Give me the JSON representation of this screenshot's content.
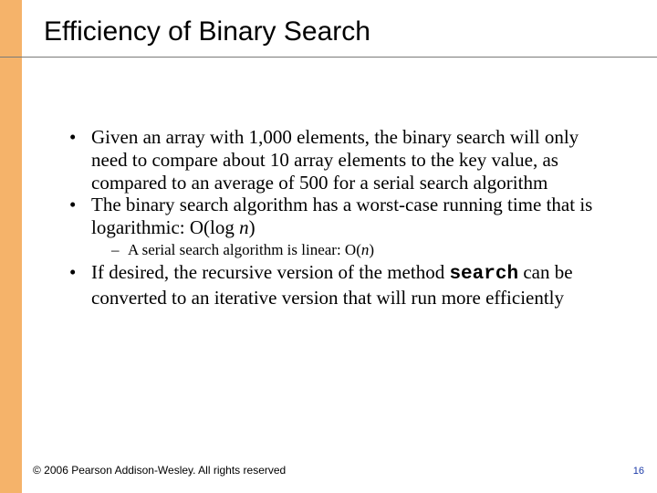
{
  "theme": {
    "sidebar_color": "#f5b36a",
    "title_rule_color": "#7a7a78",
    "page_number_color": "#1a39a7",
    "text_color": "#000000",
    "background_color": "#ffffff"
  },
  "title": "Efficiency of Binary Search",
  "bullets": [
    {
      "chunks": [
        {
          "t": "Given an array with 1,000 elements, the binary search will only need to compare about 10 array elements to the key value, as compared to an average of 500 for a serial search algorithm"
        }
      ]
    },
    {
      "chunks": [
        {
          "t": "The binary search algorithm has a worst-case running time that is logarithmic:   O(log "
        },
        {
          "t": "n",
          "style": "ital"
        },
        {
          "t": ")"
        }
      ],
      "sub": [
        {
          "chunks": [
            {
              "t": "A serial search algorithm is linear:  O("
            },
            {
              "t": "n",
              "style": "ital"
            },
            {
              "t": ")"
            }
          ]
        }
      ]
    },
    {
      "chunks": [
        {
          "t": "If desired, the recursive version of the method "
        },
        {
          "t": "search",
          "style": "mono"
        },
        {
          "t": " can be converted to an iterative version that will run more efficiently"
        }
      ]
    }
  ],
  "footer": {
    "copyright": "© 2006 Pearson Addison-Wesley. All rights reserved",
    "page_number": "16"
  }
}
